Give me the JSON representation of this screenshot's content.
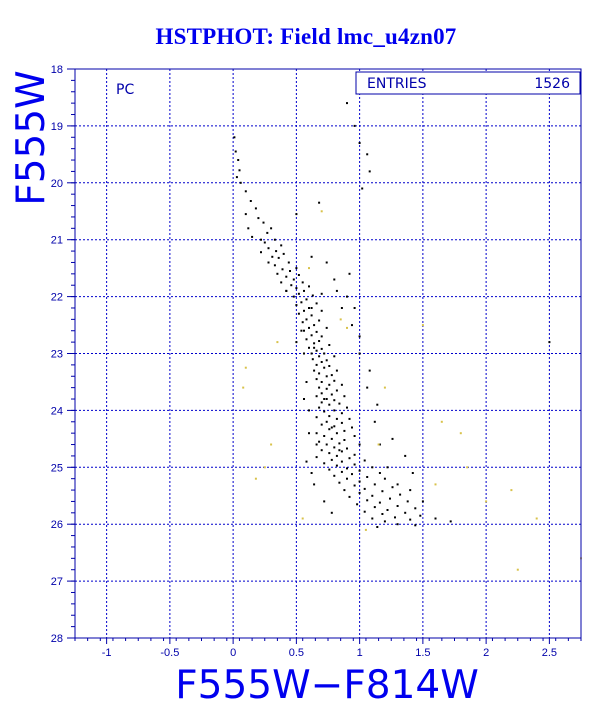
{
  "chart_data": {
    "type": "scatter",
    "title": "HSTPHOT: Field lmc_u4zn07",
    "xlabel": "F555W−F814W",
    "ylabel": "F555W",
    "corner_label": "PC",
    "stats_box": {
      "label": "ENTRIES",
      "value": "1526"
    },
    "xlim": [
      -1.25,
      2.75
    ],
    "ylim": [
      28,
      18
    ],
    "y_inverted": true,
    "x_ticks": [
      -1,
      -0.5,
      0,
      0.5,
      1,
      1.5,
      2,
      2.5
    ],
    "y_ticks": [
      18,
      19,
      20,
      21,
      22,
      23,
      24,
      25,
      26,
      27,
      28
    ],
    "grid": true,
    "grid_style": "dashed",
    "colors": {
      "axis": "#0000aa",
      "grid": "#0000cc",
      "points": "#000000",
      "faint_points": "#d8c24a",
      "title": "#0000ee"
    },
    "series": [
      {
        "description_role": "main",
        "color": "#000000",
        "points": [
          [
            0.01,
            19.2
          ],
          [
            0.02,
            19.45
          ],
          [
            0.04,
            19.6
          ],
          [
            0.05,
            19.78
          ],
          [
            0.03,
            19.9
          ],
          [
            0.06,
            20.0
          ],
          [
            0.1,
            20.15
          ],
          [
            0.14,
            20.32
          ],
          [
            0.18,
            20.45
          ],
          [
            0.1,
            20.55
          ],
          [
            0.2,
            20.62
          ],
          [
            0.24,
            20.7
          ],
          [
            0.12,
            20.8
          ],
          [
            0.3,
            20.8
          ],
          [
            0.27,
            20.88
          ],
          [
            0.15,
            20.95
          ],
          [
            0.22,
            21.0
          ],
          [
            0.33,
            21.0
          ],
          [
            0.25,
            21.05
          ],
          [
            0.38,
            21.1
          ],
          [
            0.28,
            21.15
          ],
          [
            0.34,
            21.2
          ],
          [
            0.22,
            21.22
          ],
          [
            0.4,
            21.25
          ],
          [
            0.31,
            21.3
          ],
          [
            0.36,
            21.32
          ],
          [
            0.28,
            21.4
          ],
          [
            0.44,
            21.4
          ],
          [
            0.33,
            21.45
          ],
          [
            0.5,
            21.5
          ],
          [
            0.39,
            21.52
          ],
          [
            0.45,
            21.55
          ],
          [
            0.35,
            21.6
          ],
          [
            0.52,
            21.62
          ],
          [
            0.42,
            21.65
          ],
          [
            0.48,
            21.7
          ],
          [
            0.38,
            21.75
          ],
          [
            0.55,
            21.75
          ],
          [
            0.46,
            21.8
          ],
          [
            0.6,
            21.82
          ],
          [
            0.5,
            21.85
          ],
          [
            0.42,
            21.9
          ],
          [
            0.56,
            21.9
          ],
          [
            0.52,
            21.95
          ],
          [
            0.63,
            21.98
          ],
          [
            0.48,
            22.0
          ],
          [
            0.58,
            22.05
          ],
          [
            0.54,
            22.1
          ],
          [
            0.66,
            22.12
          ],
          [
            0.5,
            22.15
          ],
          [
            0.6,
            22.2
          ],
          [
            0.56,
            22.25
          ],
          [
            0.7,
            22.25
          ],
          [
            0.52,
            22.3
          ],
          [
            0.62,
            22.33
          ],
          [
            0.58,
            22.4
          ],
          [
            0.68,
            22.42
          ],
          [
            0.55,
            22.45
          ],
          [
            0.64,
            22.5
          ],
          [
            0.6,
            22.55
          ],
          [
            0.74,
            22.55
          ],
          [
            0.56,
            22.6
          ],
          [
            0.66,
            22.62
          ],
          [
            0.62,
            22.68
          ],
          [
            0.7,
            22.7
          ],
          [
            0.58,
            22.75
          ],
          [
            0.68,
            22.78
          ],
          [
            0.64,
            22.82
          ],
          [
            0.76,
            22.85
          ],
          [
            0.6,
            22.9
          ],
          [
            0.7,
            22.92
          ],
          [
            0.66,
            22.95
          ],
          [
            0.62,
            23.0
          ],
          [
            0.72,
            23.0
          ],
          [
            0.68,
            23.05
          ],
          [
            0.8,
            23.05
          ],
          [
            0.63,
            23.1
          ],
          [
            0.74,
            23.12
          ],
          [
            0.7,
            23.15
          ],
          [
            0.66,
            23.2
          ],
          [
            0.76,
            23.22
          ],
          [
            0.72,
            23.25
          ],
          [
            0.64,
            23.3
          ],
          [
            0.82,
            23.3
          ],
          [
            0.68,
            23.35
          ],
          [
            0.78,
            23.38
          ],
          [
            0.74,
            23.4
          ],
          [
            0.66,
            23.45
          ],
          [
            0.8,
            23.48
          ],
          [
            0.7,
            23.5
          ],
          [
            0.76,
            23.55
          ],
          [
            0.86,
            23.55
          ],
          [
            0.68,
            23.6
          ],
          [
            0.74,
            23.62
          ],
          [
            0.82,
            23.65
          ],
          [
            0.7,
            23.7
          ],
          [
            0.78,
            23.72
          ],
          [
            0.66,
            23.75
          ],
          [
            0.88,
            23.75
          ],
          [
            0.74,
            23.8
          ],
          [
            0.8,
            23.82
          ],
          [
            0.7,
            23.86
          ],
          [
            0.84,
            23.88
          ],
          [
            0.76,
            23.9
          ],
          [
            0.68,
            23.95
          ],
          [
            0.9,
            23.95
          ],
          [
            0.8,
            24.0
          ],
          [
            0.72,
            24.02
          ],
          [
            0.86,
            24.05
          ],
          [
            0.76,
            24.1
          ],
          [
            0.66,
            24.12
          ],
          [
            0.82,
            24.15
          ],
          [
            0.92,
            24.15
          ],
          [
            0.74,
            24.2
          ],
          [
            0.86,
            24.22
          ],
          [
            0.7,
            24.25
          ],
          [
            0.8,
            24.28
          ],
          [
            0.94,
            24.3
          ],
          [
            0.76,
            24.33
          ],
          [
            0.88,
            24.36
          ],
          [
            0.66,
            24.4
          ],
          [
            0.82,
            24.4
          ],
          [
            0.72,
            24.45
          ],
          [
            0.96,
            24.45
          ],
          [
            0.78,
            24.5
          ],
          [
            0.88,
            24.52
          ],
          [
            0.68,
            24.55
          ],
          [
            0.84,
            24.58
          ],
          [
            0.74,
            24.6
          ],
          [
            1.0,
            24.6
          ],
          [
            0.8,
            24.65
          ],
          [
            0.9,
            24.67
          ],
          [
            0.7,
            24.7
          ],
          [
            0.86,
            24.72
          ],
          [
            0.76,
            24.75
          ],
          [
            0.96,
            24.78
          ],
          [
            0.82,
            24.8
          ],
          [
            0.66,
            24.82
          ],
          [
            0.92,
            24.84
          ],
          [
            0.78,
            24.87
          ],
          [
            1.04,
            24.88
          ],
          [
            0.86,
            24.9
          ],
          [
            0.72,
            24.93
          ],
          [
            0.96,
            24.95
          ],
          [
            0.82,
            24.97
          ],
          [
            1.1,
            25.0
          ],
          [
            0.9,
            25.02
          ],
          [
            0.76,
            25.04
          ],
          [
            1.0,
            25.06
          ],
          [
            0.86,
            25.08
          ],
          [
            1.16,
            25.1
          ],
          [
            0.94,
            25.12
          ],
          [
            0.8,
            25.15
          ],
          [
            1.06,
            25.17
          ],
          [
            0.9,
            25.2
          ],
          [
            1.2,
            25.2
          ],
          [
            1.0,
            25.25
          ],
          [
            0.84,
            25.27
          ],
          [
            1.12,
            25.3
          ],
          [
            0.96,
            25.32
          ],
          [
            1.26,
            25.35
          ],
          [
            1.04,
            25.38
          ],
          [
            0.88,
            25.4
          ],
          [
            1.18,
            25.42
          ],
          [
            1.0,
            25.45
          ],
          [
            1.32,
            25.48
          ],
          [
            1.1,
            25.5
          ],
          [
            0.92,
            25.52
          ],
          [
            1.24,
            25.55
          ],
          [
            1.06,
            25.58
          ],
          [
            1.38,
            25.6
          ],
          [
            1.16,
            25.62
          ],
          [
            0.98,
            25.65
          ],
          [
            1.3,
            25.68
          ],
          [
            1.12,
            25.7
          ],
          [
            1.44,
            25.72
          ],
          [
            1.22,
            25.75
          ],
          [
            1.04,
            25.78
          ],
          [
            1.36,
            25.8
          ],
          [
            1.18,
            25.82
          ],
          [
            1.48,
            25.85
          ],
          [
            1.28,
            25.88
          ],
          [
            1.1,
            25.9
          ],
          [
            1.4,
            25.92
          ],
          [
            1.2,
            25.95
          ],
          [
            1.3,
            26.0
          ],
          [
            1.44,
            26.02
          ],
          [
            1.14,
            26.05
          ],
          [
            0.62,
            22.2
          ],
          [
            0.64,
            22.9
          ],
          [
            0.72,
            23.8
          ],
          [
            0.78,
            24.3
          ],
          [
            0.84,
            24.7
          ],
          [
            0.58,
            24.9
          ],
          [
            0.62,
            25.1
          ],
          [
            0.66,
            24.6
          ],
          [
            0.6,
            24.0
          ],
          [
            0.58,
            23.5
          ],
          [
            0.56,
            23.0
          ],
          [
            0.54,
            22.6
          ],
          [
            0.9,
            22.0
          ],
          [
            0.8,
            21.7
          ],
          [
            0.74,
            21.4
          ],
          [
            0.62,
            21.3
          ],
          [
            0.92,
            21.6
          ],
          [
            0.96,
            22.2
          ],
          [
            1.0,
            23.0
          ],
          [
            1.06,
            23.6
          ],
          [
            1.12,
            24.2
          ],
          [
            1.16,
            24.6
          ],
          [
            1.22,
            25.0
          ],
          [
            1.3,
            25.3
          ],
          [
            1.4,
            25.4
          ],
          [
            1.5,
            25.6
          ],
          [
            1.6,
            25.9
          ],
          [
            1.72,
            25.95
          ],
          [
            0.9,
            18.6
          ],
          [
            0.96,
            19.0
          ],
          [
            1.0,
            19.3
          ],
          [
            1.06,
            19.5
          ],
          [
            1.08,
            19.8
          ],
          [
            1.02,
            20.1
          ],
          [
            0.68,
            20.35
          ],
          [
            0.5,
            20.55
          ],
          [
            0.42,
            21.9
          ],
          [
            0.5,
            22.8
          ],
          [
            0.56,
            23.8
          ],
          [
            0.6,
            24.4
          ],
          [
            0.64,
            25.3
          ],
          [
            0.72,
            25.6
          ],
          [
            0.78,
            25.8
          ],
          [
            2.5,
            22.8
          ],
          [
            1.42,
            25.1
          ],
          [
            1.36,
            24.8
          ],
          [
            1.26,
            24.5
          ],
          [
            1.14,
            23.9
          ],
          [
            1.08,
            23.3
          ],
          [
            1.0,
            22.7
          ],
          [
            0.94,
            22.5
          ],
          [
            0.86,
            22.2
          ],
          [
            0.82,
            21.9
          ],
          [
            0.7,
            21.95
          ]
        ]
      },
      {
        "description_role": "faint",
        "color": "#d8c24a",
        "points": [
          [
            0.7,
            20.5
          ],
          [
            0.9,
            22.55
          ],
          [
            0.1,
            23.25
          ],
          [
            0.35,
            22.8
          ],
          [
            0.85,
            22.4
          ],
          [
            1.5,
            22.5
          ],
          [
            1.2,
            23.6
          ],
          [
            0.08,
            23.6
          ],
          [
            1.8,
            24.4
          ],
          [
            1.65,
            24.2
          ],
          [
            0.3,
            24.6
          ],
          [
            1.15,
            24.6
          ],
          [
            0.25,
            25.0
          ],
          [
            0.18,
            25.2
          ],
          [
            1.6,
            25.3
          ],
          [
            2.2,
            25.4
          ],
          [
            2.0,
            25.6
          ],
          [
            1.85,
            25.0
          ],
          [
            2.4,
            25.9
          ],
          [
            2.75,
            26.6
          ],
          [
            2.25,
            26.8
          ],
          [
            1.05,
            26.1
          ],
          [
            0.55,
            25.9
          ],
          [
            0.6,
            21.5
          ]
        ]
      }
    ]
  }
}
